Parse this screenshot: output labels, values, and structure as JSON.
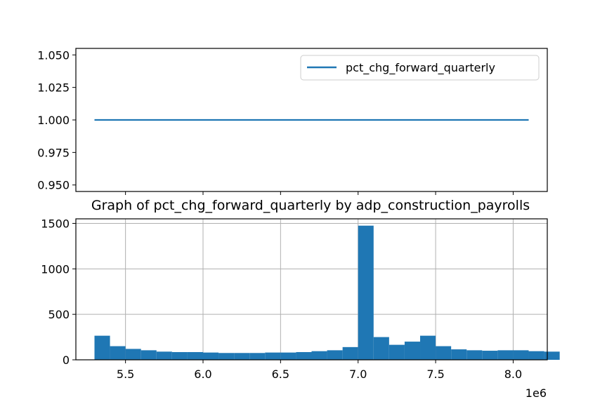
{
  "chart_data": [
    {
      "type": "line",
      "x_range": [
        5.3,
        8.1
      ],
      "ylim": [
        0.945,
        1.055
      ],
      "xlim": [
        5.18,
        8.22
      ],
      "x_ticks": [
        5.5,
        6.0,
        6.5,
        7.0,
        7.5,
        8.0
      ],
      "y_ticks": [
        0.95,
        0.975,
        1.0,
        1.025,
        1.05
      ],
      "y_tick_labels": [
        "0.950",
        "0.975",
        "1.000",
        "1.025",
        "1.050"
      ],
      "series": [
        {
          "name": "pct_chg_forward_quarterly",
          "x": [
            5.3,
            8.1
          ],
          "y": [
            1.0,
            1.0
          ],
          "color": "#1f77b4"
        }
      ],
      "grid": false,
      "legend_position": "upper right"
    },
    {
      "type": "bar",
      "title": "Graph of pct_chg_forward_quarterly by adp_construction_payrolls",
      "xlim": [
        5.18,
        8.22
      ],
      "ylim": [
        0,
        1550
      ],
      "x_ticks": [
        5.5,
        6.0,
        6.5,
        7.0,
        7.5,
        8.0
      ],
      "x_tick_labels": [
        "5.5",
        "6.0",
        "6.5",
        "7.0",
        "7.5",
        "8.0"
      ],
      "y_ticks": [
        0,
        500,
        1000,
        1500
      ],
      "y_tick_labels": [
        "0",
        "500",
        "1000",
        "1500"
      ],
      "x_offset_label": "1e6",
      "bin_start": 5.3,
      "bin_width": 0.1,
      "values": [
        265,
        150,
        120,
        105,
        90,
        85,
        85,
        80,
        75,
        75,
        75,
        80,
        80,
        85,
        95,
        105,
        140,
        1475,
        250,
        165,
        200,
        265,
        150,
        115,
        105,
        100,
        105,
        105,
        95,
        90
      ],
      "color": "#1f77b4",
      "grid": true
    }
  ]
}
